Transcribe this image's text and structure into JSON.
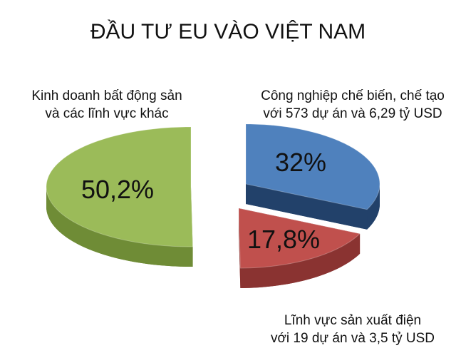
{
  "chart_data": {
    "type": "pie",
    "title": "ĐẦU TƯ EU VÀO VIỆT NAM",
    "style": "3d-exploded",
    "slices": [
      {
        "label_lines": [
          "Công nghiệp chế biến, chế tạo",
          "với 573 dự án và 6,29 tỷ USD"
        ],
        "value": 32,
        "value_label": "32%",
        "color": "#4f81bd",
        "side_color": "#22416a"
      },
      {
        "label_lines": [
          "Lĩnh vực sản xuất điện",
          "với 19 dự án và 3,5 tỷ USD"
        ],
        "value": 17.8,
        "value_label": "17,8%",
        "color": "#c0504d",
        "side_color": "#8a3331"
      },
      {
        "label_lines": [
          "Kinh doanh bất động sản",
          "và các lĩnh vực khác"
        ],
        "value": 50.2,
        "value_label": "50,2%",
        "color": "#9bbb59",
        "side_color": "#6f8c36"
      }
    ]
  }
}
